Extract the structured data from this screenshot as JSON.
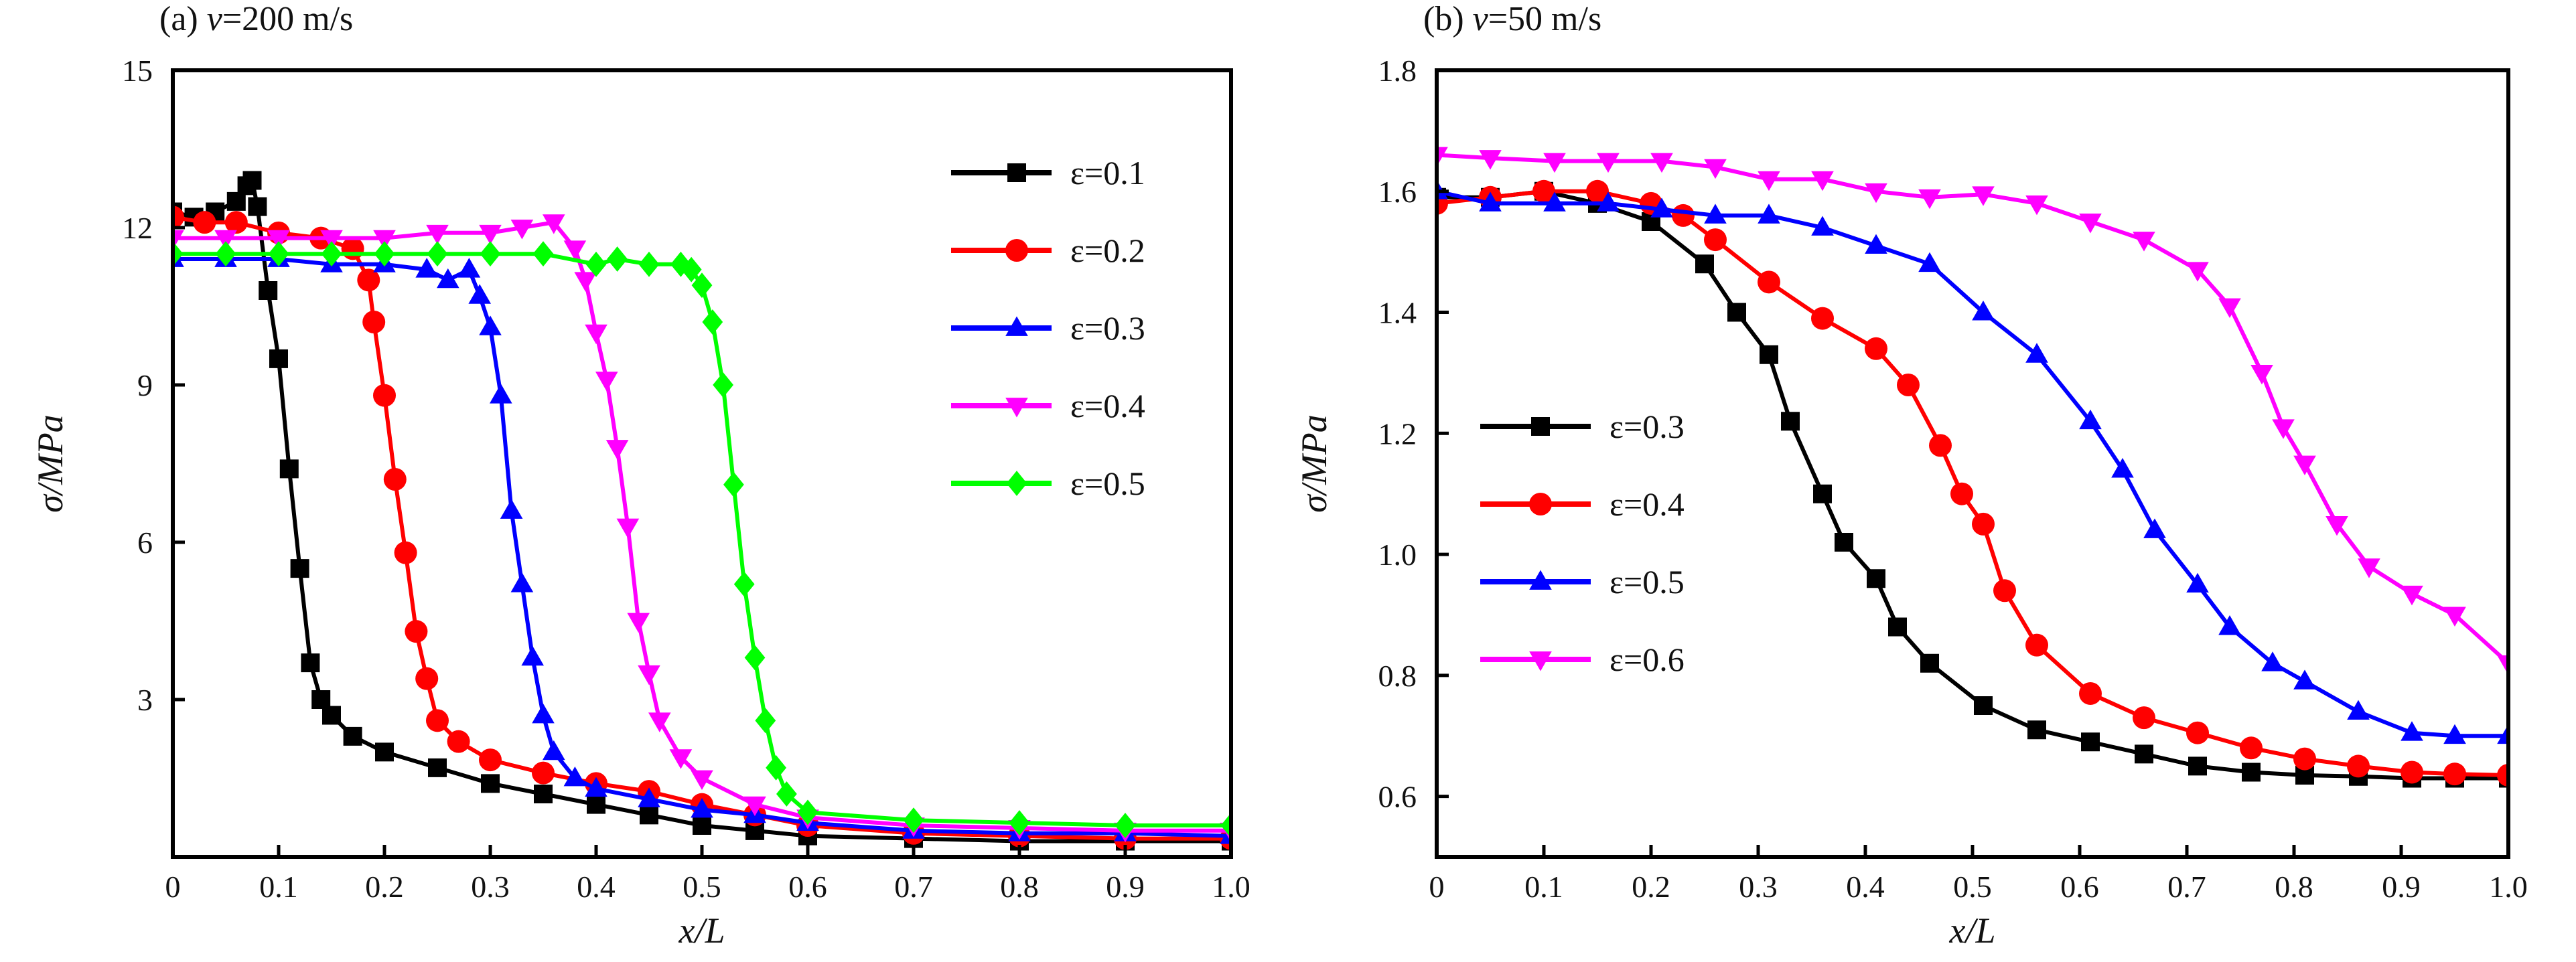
{
  "chart_data": [
    {
      "type": "line",
      "title": "(a) v=200 m/s",
      "title_parts": {
        "prefix": "(a) ",
        "var": "v",
        "rest": "=200 m/s"
      },
      "xlabel": "x/L",
      "ylabel": "σ/MPa",
      "xlim": [
        0,
        1.0
      ],
      "ylim": [
        0,
        15
      ],
      "xticks": [
        "0",
        "0.1",
        "0.2",
        "0.3",
        "0.4",
        "0.5",
        "0.6",
        "0.7",
        "0.8",
        "0.9",
        "1.0"
      ],
      "yticks": [
        "3",
        "6",
        "9",
        "12",
        "15"
      ],
      "xtick_values": [
        0,
        0.1,
        0.2,
        0.3,
        0.4,
        0.5,
        0.6,
        0.7,
        0.8,
        0.9,
        1.0
      ],
      "ytick_values": [
        3,
        6,
        9,
        12,
        15
      ],
      "legend_position": "top-right",
      "series": [
        {
          "name": "ε=0.1",
          "color": "#000000",
          "marker": "square",
          "points": [
            [
              0,
              12.3
            ],
            [
              0.02,
              12.2
            ],
            [
              0.04,
              12.3
            ],
            [
              0.06,
              12.5
            ],
            [
              0.07,
              12.8
            ],
            [
              0.075,
              12.9
            ],
            [
              0.08,
              12.4
            ],
            [
              0.09,
              10.8
            ],
            [
              0.1,
              9.5
            ],
            [
              0.11,
              7.4
            ],
            [
              0.12,
              5.5
            ],
            [
              0.13,
              3.7
            ],
            [
              0.14,
              3.0
            ],
            [
              0.15,
              2.7
            ],
            [
              0.17,
              2.3
            ],
            [
              0.2,
              2.0
            ],
            [
              0.25,
              1.7
            ],
            [
              0.3,
              1.4
            ],
            [
              0.35,
              1.2
            ],
            [
              0.4,
              1.0
            ],
            [
              0.45,
              0.8
            ],
            [
              0.5,
              0.6
            ],
            [
              0.55,
              0.5
            ],
            [
              0.6,
              0.4
            ],
            [
              0.7,
              0.35
            ],
            [
              0.8,
              0.3
            ],
            [
              0.9,
              0.3
            ],
            [
              1.0,
              0.3
            ]
          ]
        },
        {
          "name": "ε=0.2",
          "color": "#ff0000",
          "marker": "circle",
          "points": [
            [
              0,
              12.2
            ],
            [
              0.03,
              12.1
            ],
            [
              0.06,
              12.1
            ],
            [
              0.1,
              11.9
            ],
            [
              0.14,
              11.8
            ],
            [
              0.17,
              11.6
            ],
            [
              0.185,
              11.0
            ],
            [
              0.19,
              10.2
            ],
            [
              0.2,
              8.8
            ],
            [
              0.21,
              7.2
            ],
            [
              0.22,
              5.8
            ],
            [
              0.23,
              4.3
            ],
            [
              0.24,
              3.4
            ],
            [
              0.25,
              2.6
            ],
            [
              0.27,
              2.2
            ],
            [
              0.3,
              1.85
            ],
            [
              0.35,
              1.6
            ],
            [
              0.4,
              1.4
            ],
            [
              0.45,
              1.25
            ],
            [
              0.5,
              1.0
            ],
            [
              0.55,
              0.8
            ],
            [
              0.6,
              0.6
            ],
            [
              0.7,
              0.45
            ],
            [
              0.8,
              0.4
            ],
            [
              0.9,
              0.35
            ],
            [
              1.0,
              0.35
            ]
          ]
        },
        {
          "name": "ε=0.3",
          "color": "#0000ff",
          "marker": "triangle-up",
          "points": [
            [
              0,
              11.4
            ],
            [
              0.05,
              11.4
            ],
            [
              0.1,
              11.4
            ],
            [
              0.15,
              11.3
            ],
            [
              0.2,
              11.3
            ],
            [
              0.24,
              11.2
            ],
            [
              0.26,
              11.0
            ],
            [
              0.28,
              11.2
            ],
            [
              0.29,
              10.7
            ],
            [
              0.3,
              10.1
            ],
            [
              0.31,
              8.8
            ],
            [
              0.32,
              6.6
            ],
            [
              0.33,
              5.2
            ],
            [
              0.34,
              3.8
            ],
            [
              0.35,
              2.7
            ],
            [
              0.36,
              2.0
            ],
            [
              0.38,
              1.5
            ],
            [
              0.4,
              1.3
            ],
            [
              0.45,
              1.1
            ],
            [
              0.5,
              0.9
            ],
            [
              0.55,
              0.8
            ],
            [
              0.6,
              0.65
            ],
            [
              0.7,
              0.5
            ],
            [
              0.8,
              0.45
            ],
            [
              0.9,
              0.45
            ],
            [
              1.0,
              0.4
            ]
          ]
        },
        {
          "name": "ε=0.4",
          "color": "#ff00ff",
          "marker": "triangle-down",
          "points": [
            [
              0,
              11.8
            ],
            [
              0.05,
              11.8
            ],
            [
              0.1,
              11.8
            ],
            [
              0.15,
              11.8
            ],
            [
              0.2,
              11.8
            ],
            [
              0.25,
              11.9
            ],
            [
              0.3,
              11.9
            ],
            [
              0.33,
              12.0
            ],
            [
              0.36,
              12.1
            ],
            [
              0.38,
              11.6
            ],
            [
              0.39,
              11.0
            ],
            [
              0.4,
              10.0
            ],
            [
              0.41,
              9.1
            ],
            [
              0.42,
              7.8
            ],
            [
              0.43,
              6.3
            ],
            [
              0.44,
              4.5
            ],
            [
              0.45,
              3.5
            ],
            [
              0.46,
              2.6
            ],
            [
              0.48,
              1.9
            ],
            [
              0.5,
              1.5
            ],
            [
              0.55,
              1.0
            ],
            [
              0.6,
              0.75
            ],
            [
              0.7,
              0.6
            ],
            [
              0.8,
              0.55
            ],
            [
              0.9,
              0.5
            ],
            [
              1.0,
              0.5
            ]
          ]
        },
        {
          "name": "ε=0.5",
          "color": "#00ff00",
          "marker": "diamond",
          "points": [
            [
              0,
              11.5
            ],
            [
              0.05,
              11.5
            ],
            [
              0.1,
              11.5
            ],
            [
              0.15,
              11.5
            ],
            [
              0.2,
              11.5
            ],
            [
              0.25,
              11.5
            ],
            [
              0.3,
              11.5
            ],
            [
              0.35,
              11.5
            ],
            [
              0.4,
              11.3
            ],
            [
              0.42,
              11.4
            ],
            [
              0.45,
              11.3
            ],
            [
              0.48,
              11.3
            ],
            [
              0.49,
              11.2
            ],
            [
              0.5,
              10.9
            ],
            [
              0.51,
              10.2
            ],
            [
              0.52,
              9.0
            ],
            [
              0.53,
              7.1
            ],
            [
              0.54,
              5.2
            ],
            [
              0.55,
              3.8
            ],
            [
              0.56,
              2.6
            ],
            [
              0.57,
              1.7
            ],
            [
              0.58,
              1.2
            ],
            [
              0.6,
              0.85
            ],
            [
              0.7,
              0.7
            ],
            [
              0.8,
              0.65
            ],
            [
              0.9,
              0.6
            ],
            [
              1.0,
              0.6
            ]
          ]
        }
      ]
    },
    {
      "type": "line",
      "title": "(b) v=50 m/s",
      "title_parts": {
        "prefix": "(b) ",
        "var": "v",
        "rest": "=50 m/s"
      },
      "xlabel": "x/L",
      "ylabel": "σ/MPa",
      "xlim": [
        0,
        1.0
      ],
      "ylim": [
        0.5,
        1.8
      ],
      "xticks": [
        "0",
        "0.1",
        "0.2",
        "0.3",
        "0.4",
        "0.5",
        "0.6",
        "0.7",
        "0.8",
        "0.9",
        "1.0"
      ],
      "yticks": [
        "0.6",
        "0.8",
        "1.0",
        "1.2",
        "1.4",
        "1.6",
        "1.8"
      ],
      "xtick_values": [
        0,
        0.1,
        0.2,
        0.3,
        0.4,
        0.5,
        0.6,
        0.7,
        0.8,
        0.9,
        1.0
      ],
      "ytick_values": [
        0.6,
        0.8,
        1.0,
        1.2,
        1.4,
        1.6,
        1.8
      ],
      "legend_position": "center-left",
      "series": [
        {
          "name": "ε=0.3",
          "color": "#000000",
          "marker": "square",
          "points": [
            [
              0,
              1.59
            ],
            [
              0.05,
              1.59
            ],
            [
              0.1,
              1.6
            ],
            [
              0.15,
              1.58
            ],
            [
              0.2,
              1.55
            ],
            [
              0.25,
              1.48
            ],
            [
              0.28,
              1.4
            ],
            [
              0.31,
              1.33
            ],
            [
              0.33,
              1.22
            ],
            [
              0.36,
              1.1
            ],
            [
              0.38,
              1.02
            ],
            [
              0.41,
              0.96
            ],
            [
              0.43,
              0.88
            ],
            [
              0.46,
              0.82
            ],
            [
              0.51,
              0.75
            ],
            [
              0.56,
              0.71
            ],
            [
              0.61,
              0.69
            ],
            [
              0.66,
              0.67
            ],
            [
              0.71,
              0.65
            ],
            [
              0.76,
              0.64
            ],
            [
              0.81,
              0.635
            ],
            [
              0.86,
              0.633
            ],
            [
              0.91,
              0.63
            ],
            [
              0.95,
              0.63
            ],
            [
              1.0,
              0.63
            ]
          ]
        },
        {
          "name": "ε=0.4",
          "color": "#ff0000",
          "marker": "circle",
          "points": [
            [
              0,
              1.58
            ],
            [
              0.05,
              1.59
            ],
            [
              0.1,
              1.6
            ],
            [
              0.15,
              1.6
            ],
            [
              0.2,
              1.58
            ],
            [
              0.23,
              1.56
            ],
            [
              0.26,
              1.52
            ],
            [
              0.31,
              1.45
            ],
            [
              0.36,
              1.39
            ],
            [
              0.41,
              1.34
            ],
            [
              0.44,
              1.28
            ],
            [
              0.47,
              1.18
            ],
            [
              0.49,
              1.1
            ],
            [
              0.51,
              1.05
            ],
            [
              0.53,
              0.94
            ],
            [
              0.56,
              0.85
            ],
            [
              0.61,
              0.77
            ],
            [
              0.66,
              0.73
            ],
            [
              0.71,
              0.705
            ],
            [
              0.76,
              0.68
            ],
            [
              0.81,
              0.662
            ],
            [
              0.86,
              0.65
            ],
            [
              0.91,
              0.64
            ],
            [
              0.95,
              0.637
            ],
            [
              1.0,
              0.635
            ]
          ]
        },
        {
          "name": "ε=0.5",
          "color": "#0000ff",
          "marker": "triangle-up",
          "points": [
            [
              0,
              1.6
            ],
            [
              0.05,
              1.58
            ],
            [
              0.11,
              1.58
            ],
            [
              0.16,
              1.58
            ],
            [
              0.21,
              1.57
            ],
            [
              0.26,
              1.56
            ],
            [
              0.31,
              1.56
            ],
            [
              0.36,
              1.54
            ],
            [
              0.41,
              1.51
            ],
            [
              0.46,
              1.48
            ],
            [
              0.51,
              1.4
            ],
            [
              0.56,
              1.33
            ],
            [
              0.61,
              1.22
            ],
            [
              0.64,
              1.14
            ],
            [
              0.67,
              1.04
            ],
            [
              0.71,
              0.95
            ],
            [
              0.74,
              0.88
            ],
            [
              0.78,
              0.82
            ],
            [
              0.81,
              0.79
            ],
            [
              0.86,
              0.74
            ],
            [
              0.91,
              0.705
            ],
            [
              0.95,
              0.7
            ],
            [
              1.0,
              0.7
            ]
          ]
        },
        {
          "name": "ε=0.6",
          "color": "#ff00ff",
          "marker": "triangle-down",
          "points": [
            [
              0,
              1.66
            ],
            [
              0.05,
              1.655
            ],
            [
              0.11,
              1.65
            ],
            [
              0.16,
              1.65
            ],
            [
              0.21,
              1.65
            ],
            [
              0.26,
              1.64
            ],
            [
              0.31,
              1.62
            ],
            [
              0.36,
              1.62
            ],
            [
              0.41,
              1.6
            ],
            [
              0.46,
              1.59
            ],
            [
              0.51,
              1.595
            ],
            [
              0.56,
              1.58
            ],
            [
              0.61,
              1.55
            ],
            [
              0.66,
              1.52
            ],
            [
              0.71,
              1.47
            ],
            [
              0.74,
              1.41
            ],
            [
              0.77,
              1.3
            ],
            [
              0.79,
              1.21
            ],
            [
              0.81,
              1.15
            ],
            [
              0.84,
              1.05
            ],
            [
              0.87,
              0.98
            ],
            [
              0.91,
              0.935
            ],
            [
              0.95,
              0.9
            ],
            [
              1.0,
              0.82
            ]
          ]
        }
      ]
    }
  ]
}
